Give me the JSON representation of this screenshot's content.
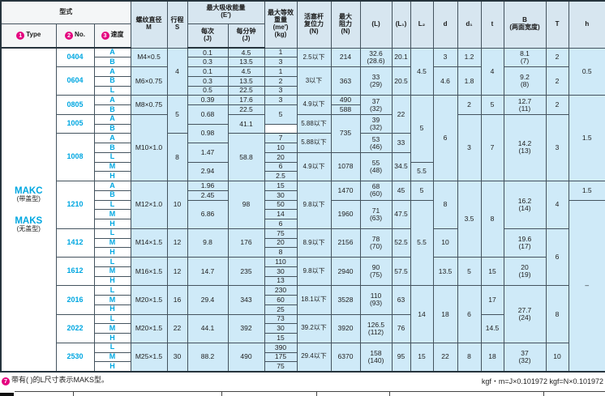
{
  "table": {
    "header": {
      "xingshi": "型式",
      "type_label": {
        "num": "1",
        "text": "Type"
      },
      "no_label": {
        "num": "2",
        "text": "No."
      },
      "speed_label": {
        "num": "3",
        "text": "速度"
      },
      "m": "螺纹直径\nM",
      "s": "行程\nS",
      "energy": "最大吸收能量\n(E′)",
      "per_cycle": "每次\n(J)",
      "per_min": "每分钟\n(J)",
      "me": "最大等效\n重量\n(me′)\n(kg)",
      "return_force": "活塞杆\n复位力\n(N)",
      "max_drag": "最大\n阻力\n(N)",
      "L": "(L)",
      "L1": "(L₁)",
      "L2": "L₂",
      "d": "d",
      "d1": "d₁",
      "t": "t",
      "B": "B\n(两面宽度)",
      "T": "T",
      "h": "h"
    },
    "type_column": [
      {
        "name": "MAKC",
        "sub": "(带盖型)"
      },
      {
        "name": "MAKS",
        "sub": "(无盖型)"
      }
    ],
    "rows": [
      [
        [
          1,
          2,
          "0404"
        ],
        [
          2,
          1,
          "A"
        ],
        [
          3,
          2,
          "M4×0.5"
        ],
        [
          4,
          5,
          "4"
        ],
        [
          5,
          1,
          "0.1"
        ],
        [
          6,
          1,
          "4.5"
        ],
        [
          7,
          1,
          "1"
        ],
        [
          8,
          2,
          "2.5以下"
        ],
        [
          9,
          2,
          "214"
        ],
        [
          10,
          2,
          "32.6\n(28.6)"
        ],
        [
          11,
          2,
          "20.1"
        ],
        [
          12,
          5,
          "4.5"
        ],
        [
          13,
          2,
          "3"
        ],
        [
          14,
          2,
          "1.2"
        ],
        [
          15,
          5,
          "4"
        ],
        [
          16,
          2,
          "8.1\n(7)"
        ],
        [
          17,
          2,
          "2"
        ],
        [
          18,
          5,
          "0.5"
        ]
      ],
      [
        [
          2,
          1,
          "B"
        ],
        [
          5,
          1,
          "0.3"
        ],
        [
          6,
          1,
          "13.5"
        ],
        [
          7,
          1,
          "3"
        ]
      ],
      [
        [
          1,
          3,
          "0604"
        ],
        [
          2,
          1,
          "A"
        ],
        [
          3,
          3,
          "M6×0.75"
        ],
        [
          5,
          1,
          "0.1"
        ],
        [
          6,
          1,
          "4.5"
        ],
        [
          7,
          1,
          "1"
        ],
        [
          8,
          3,
          "3以下"
        ],
        [
          9,
          3,
          "363"
        ],
        [
          10,
          3,
          "33\n(29)"
        ],
        [
          11,
          3,
          "20.5"
        ],
        [
          13,
          3,
          "4.6"
        ],
        [
          14,
          3,
          "1.8"
        ],
        [
          16,
          3,
          "9.2\n(8)"
        ],
        [
          17,
          3,
          "2"
        ]
      ],
      [
        [
          2,
          1,
          "B"
        ],
        [
          5,
          1,
          "0.3"
        ],
        [
          6,
          1,
          "13.5"
        ],
        [
          7,
          1,
          "2"
        ]
      ],
      [
        [
          2,
          1,
          "L"
        ],
        [
          5,
          1,
          "0.5"
        ],
        [
          6,
          1,
          "22.5"
        ],
        [
          7,
          1,
          "3"
        ]
      ],
      [
        [
          1,
          2,
          "0805"
        ],
        [
          2,
          1,
          "A"
        ],
        [
          3,
          2,
          "M8×0.75"
        ],
        [
          4,
          4,
          "5"
        ],
        [
          5,
          1,
          "0.39"
        ],
        [
          6,
          1,
          "17.6"
        ],
        [
          7,
          1,
          "3"
        ],
        [
          8,
          2,
          "4.9以下"
        ],
        [
          9,
          1,
          "490"
        ],
        [
          10,
          2,
          "37\n(32)"
        ],
        [
          11,
          4,
          "22"
        ],
        [
          12,
          7,
          "5"
        ],
        [
          13,
          9,
          "6"
        ],
        [
          14,
          2,
          "2"
        ],
        [
          15,
          2,
          "5"
        ],
        [
          16,
          2,
          "12.7\n(11)"
        ],
        [
          17,
          2,
          "2"
        ],
        [
          18,
          9,
          "1.5"
        ]
      ],
      [
        [
          2,
          1,
          "B"
        ],
        [
          5,
          2,
          "0.68"
        ],
        [
          6,
          1,
          "22.5"
        ],
        [
          7,
          2,
          "5"
        ],
        [
          9,
          1,
          "588"
        ]
      ],
      [
        [
          1,
          2,
          "1005"
        ],
        [
          2,
          1,
          "A"
        ],
        [
          3,
          7,
          "M10×1.0"
        ],
        [
          6,
          2,
          "41.1"
        ],
        [
          8,
          2,
          "5.88以下"
        ],
        [
          9,
          4,
          "735"
        ],
        [
          10,
          2,
          "39\n(32)"
        ],
        [
          14,
          7,
          "3"
        ],
        [
          15,
          7,
          "7"
        ],
        [
          16,
          7,
          "14.2\n(13)"
        ],
        [
          17,
          7,
          "3"
        ]
      ],
      [
        [
          2,
          1,
          "B"
        ],
        [
          5,
          2,
          "0.98"
        ]
      ],
      [
        [
          1,
          5,
          "1008"
        ],
        [
          2,
          1,
          "A"
        ],
        [
          4,
          5,
          "8"
        ],
        [
          6,
          5,
          "58.8"
        ],
        [
          7,
          1,
          "7"
        ],
        [
          8,
          2,
          "5.88以下"
        ],
        [
          10,
          2,
          "53\n(46)"
        ],
        [
          11,
          2,
          "33"
        ]
      ],
      [
        [
          2,
          1,
          "B"
        ],
        [
          5,
          2,
          "1.47"
        ],
        [
          7,
          1,
          "10"
        ]
      ],
      [
        [
          2,
          1,
          "L"
        ],
        [
          7,
          1,
          "20"
        ],
        [
          8,
          3,
          "4.9以下"
        ],
        [
          9,
          3,
          "1078"
        ],
        [
          10,
          3,
          "55\n(48)"
        ],
        [
          11,
          3,
          "34.5"
        ]
      ],
      [
        [
          2,
          1,
          "M"
        ],
        [
          5,
          2,
          "2.94"
        ],
        [
          7,
          1,
          "6"
        ],
        [
          12,
          2,
          "5.5"
        ]
      ],
      [
        [
          2,
          1,
          "H"
        ],
        [
          7,
          1,
          "2.5"
        ]
      ],
      [
        [
          1,
          5,
          "1210"
        ],
        [
          2,
          1,
          "A"
        ],
        [
          3,
          5,
          "M12×1.0"
        ],
        [
          4,
          5,
          "10"
        ],
        [
          5,
          1,
          "1.96"
        ],
        [
          6,
          5,
          "98"
        ],
        [
          7,
          1,
          "15"
        ],
        [
          8,
          5,
          "9.8以下"
        ],
        [
          9,
          2,
          "1470"
        ],
        [
          10,
          2,
          "68\n(60)"
        ],
        [
          11,
          2,
          "45"
        ],
        [
          12,
          2,
          "5"
        ],
        [
          13,
          5,
          "8"
        ],
        [
          14,
          8,
          "3.5"
        ],
        [
          15,
          8,
          "8"
        ],
        [
          16,
          5,
          "16.2\n(14)"
        ],
        [
          17,
          5,
          "4"
        ],
        [
          18,
          2,
          "1.5"
        ]
      ],
      [
        [
          2,
          1,
          "B"
        ],
        [
          5,
          1,
          "2.45"
        ],
        [
          7,
          1,
          "30"
        ]
      ],
      [
        [
          2,
          1,
          "L"
        ],
        [
          5,
          3,
          "6.86"
        ],
        [
          7,
          1,
          "50"
        ],
        [
          9,
          3,
          "1960"
        ],
        [
          10,
          3,
          "71\n(63)"
        ],
        [
          11,
          3,
          "47.5"
        ],
        [
          12,
          9,
          "5.5"
        ],
        [
          18,
          18,
          "–"
        ]
      ],
      [
        [
          2,
          1,
          "M"
        ],
        [
          7,
          1,
          "14"
        ]
      ],
      [
        [
          2,
          1,
          "H"
        ],
        [
          7,
          1,
          "6"
        ]
      ],
      [
        [
          1,
          3,
          "1412"
        ],
        [
          2,
          1,
          "L"
        ],
        [
          3,
          3,
          "M14×1.5"
        ],
        [
          4,
          3,
          "12"
        ],
        [
          5,
          3,
          "9.8"
        ],
        [
          6,
          3,
          "176"
        ],
        [
          7,
          1,
          "75"
        ],
        [
          8,
          3,
          "8.9以下"
        ],
        [
          9,
          3,
          "2156"
        ],
        [
          10,
          3,
          "78\n(70)"
        ],
        [
          11,
          3,
          "52.5"
        ],
        [
          13,
          3,
          "10"
        ],
        [
          16,
          3,
          "19.6\n(17)"
        ],
        [
          17,
          6,
          "6"
        ]
      ],
      [
        [
          2,
          1,
          "M"
        ],
        [
          7,
          1,
          "20"
        ]
      ],
      [
        [
          2,
          1,
          "H"
        ],
        [
          7,
          1,
          "8"
        ]
      ],
      [
        [
          1,
          3,
          "1612"
        ],
        [
          2,
          1,
          "L"
        ],
        [
          3,
          3,
          "M16×1.5"
        ],
        [
          4,
          3,
          "12"
        ],
        [
          5,
          3,
          "14.7"
        ],
        [
          6,
          3,
          "235"
        ],
        [
          7,
          1,
          "110"
        ],
        [
          8,
          3,
          "9.8以下"
        ],
        [
          9,
          3,
          "2940"
        ],
        [
          10,
          3,
          "90\n(75)"
        ],
        [
          11,
          3,
          "57.5"
        ],
        [
          13,
          3,
          "13.5"
        ],
        [
          14,
          3,
          "5"
        ],
        [
          15,
          3,
          "15"
        ],
        [
          16,
          3,
          "20\n(19)"
        ]
      ],
      [
        [
          2,
          1,
          "M"
        ],
        [
          7,
          1,
          "30"
        ]
      ],
      [
        [
          2,
          1,
          "H"
        ],
        [
          7,
          1,
          "13"
        ]
      ],
      [
        [
          1,
          3,
          "2016"
        ],
        [
          2,
          1,
          "L"
        ],
        [
          3,
          3,
          "M20×1.5"
        ],
        [
          4,
          3,
          "16"
        ],
        [
          5,
          3,
          "29.4"
        ],
        [
          6,
          3,
          "343"
        ],
        [
          7,
          1,
          "230"
        ],
        [
          8,
          3,
          "18.1以下"
        ],
        [
          9,
          3,
          "3528"
        ],
        [
          10,
          3,
          "110\n(93)"
        ],
        [
          11,
          3,
          "63"
        ],
        [
          12,
          6,
          "14"
        ],
        [
          13,
          6,
          "18"
        ],
        [
          14,
          6,
          "6"
        ],
        [
          15,
          3,
          "17"
        ],
        [
          16,
          6,
          "27.7\n(24)"
        ],
        [
          17,
          6,
          "8"
        ]
      ],
      [
        [
          2,
          1,
          "M"
        ],
        [
          7,
          1,
          "60"
        ]
      ],
      [
        [
          2,
          1,
          "H"
        ],
        [
          7,
          1,
          "25"
        ]
      ],
      [
        [
          1,
          3,
          "2022"
        ],
        [
          2,
          1,
          "L"
        ],
        [
          3,
          3,
          "M20×1.5"
        ],
        [
          4,
          3,
          "22"
        ],
        [
          5,
          3,
          "44.1"
        ],
        [
          6,
          3,
          "392"
        ],
        [
          7,
          1,
          "73"
        ],
        [
          8,
          3,
          "39.2以下"
        ],
        [
          9,
          3,
          "3920"
        ],
        [
          10,
          3,
          "126.5\n(112)"
        ],
        [
          11,
          3,
          "76"
        ],
        [
          15,
          3,
          "14.5"
        ]
      ],
      [
        [
          2,
          1,
          "M"
        ],
        [
          7,
          1,
          "30"
        ]
      ],
      [
        [
          2,
          1,
          "H"
        ],
        [
          7,
          1,
          "15"
        ]
      ],
      [
        [
          1,
          3,
          "2530"
        ],
        [
          2,
          1,
          "L"
        ],
        [
          3,
          3,
          "M25×1.5"
        ],
        [
          4,
          3,
          "30"
        ],
        [
          5,
          3,
          "88.2"
        ],
        [
          6,
          3,
          "490"
        ],
        [
          7,
          1,
          "390"
        ],
        [
          8,
          3,
          "29.4以下"
        ],
        [
          9,
          3,
          "6370"
        ],
        [
          10,
          3,
          "158\n(140)"
        ],
        [
          11,
          3,
          "95"
        ],
        [
          12,
          3,
          "15"
        ],
        [
          13,
          3,
          "22"
        ],
        [
          14,
          3,
          "8"
        ],
        [
          15,
          3,
          "18"
        ],
        [
          16,
          3,
          "37\n(32)"
        ],
        [
          17,
          3,
          "10"
        ]
      ],
      [
        [
          2,
          1,
          "M"
        ],
        [
          7,
          1,
          "175"
        ]
      ],
      [
        [
          2,
          1,
          "H"
        ],
        [
          7,
          1,
          "75"
        ]
      ]
    ]
  },
  "footnotes": {
    "left_marker": "7",
    "left": "带有( )的L尺寸表示MAKS型。",
    "right": "kgf・m=J×0.101972  kgf=N×0.101972"
  },
  "colors": {
    "accent_blue": "#00a7e1",
    "marker_magenta": "#e4007f",
    "cell_cyan": "#cfeaf8",
    "header_bg": "#d7e6f0"
  }
}
